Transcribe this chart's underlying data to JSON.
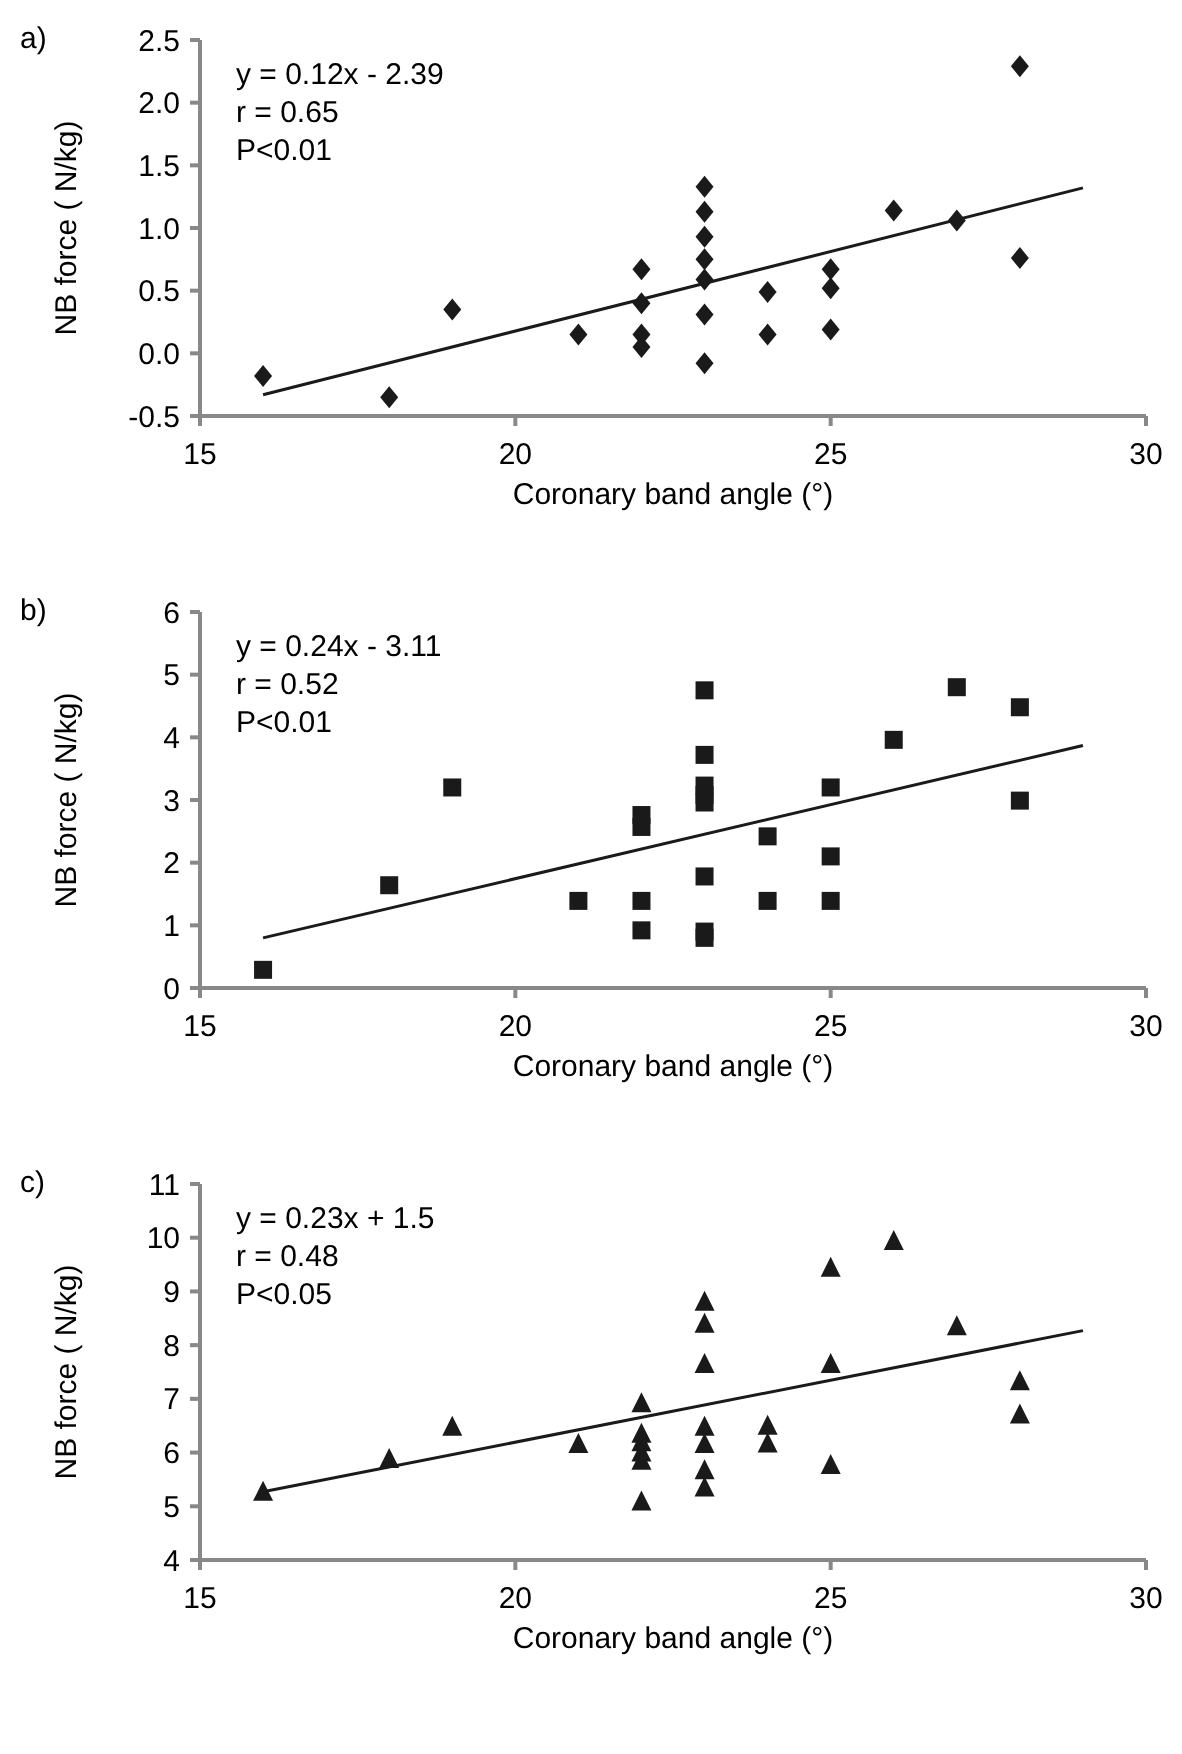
{
  "chart_data": [
    {
      "type": "scatter",
      "title": "a)",
      "xlabel": "Coronary band angle (°)",
      "ylabel": "NB force ( N/kg)",
      "marker": "diamond",
      "grid": false,
      "xlim": [
        15,
        30
      ],
      "xticks": [
        15,
        20,
        25,
        30
      ],
      "ylim": [
        -0.5,
        2.5
      ],
      "yticks": [
        {
          "value": -0.5,
          "label": "-0.5"
        },
        {
          "value": 0,
          "label": "0.0"
        },
        {
          "value": 0.5,
          "label": "0.5"
        },
        {
          "value": 1,
          "label": "1.0"
        },
        {
          "value": 1.5,
          "label": "1.5"
        },
        {
          "value": 2,
          "label": "2.0"
        },
        {
          "value": 2.5,
          "label": "2.5"
        }
      ],
      "annotations": [
        "y = 0.12x - 2.39",
        "r = 0.65",
        "P<0.01"
      ],
      "series": [
        {
          "color": "#1a1a1a",
          "x": [
            16,
            18,
            19,
            21,
            22,
            22,
            22,
            22,
            23,
            23,
            23,
            23,
            23,
            23,
            23,
            24,
            24,
            25,
            25,
            25,
            26,
            27,
            28,
            28
          ],
          "values": [
            -0.18,
            -0.35,
            0.35,
            0.15,
            0.67,
            0.4,
            0.15,
            0.05,
            1.33,
            1.13,
            0.93,
            0.75,
            0.59,
            0.31,
            -0.08,
            0.49,
            0.15,
            0.67,
            0.52,
            0.19,
            1.14,
            1.06,
            2.29,
            0.76
          ]
        },
        {
          "type": "line",
          "color": "#1a1a1a",
          "marker": "none",
          "x": [
            16,
            29
          ],
          "values": [
            -0.33,
            1.32
          ]
        }
      ]
    },
    {
      "type": "scatter",
      "title": "b)",
      "xlabel": "Coronary band angle (°)",
      "ylabel": "NB force ( N/kg)",
      "marker": "square",
      "grid": false,
      "xlim": [
        15,
        30
      ],
      "xticks": [
        15,
        20,
        25,
        30
      ],
      "ylim": [
        0,
        6
      ],
      "yticks": [
        0,
        1,
        2,
        3,
        4,
        5,
        6
      ],
      "annotations": [
        "y = 0.24x - 3.11",
        "r = 0.52",
        "P<0.01"
      ],
      "series": [
        {
          "color": "#1a1a1a",
          "x": [
            16,
            18,
            19,
            21,
            22,
            22,
            22,
            22,
            23,
            23,
            23,
            23,
            23,
            23,
            23,
            23,
            24,
            24,
            25,
            25,
            25,
            26,
            27,
            28,
            28
          ],
          "values": [
            0.29,
            1.64,
            3.2,
            1.39,
            2.76,
            2.57,
            1.39,
            0.92,
            4.75,
            3.72,
            3.23,
            3.08,
            2.96,
            1.78,
            0.9,
            0.8,
            2.42,
            1.39,
            3.2,
            2.1,
            1.39,
            3.96,
            4.8,
            4.48,
            2.99
          ]
        },
        {
          "type": "line",
          "color": "#1a1a1a",
          "marker": "none",
          "x": [
            16,
            29
          ],
          "values": [
            0.8,
            3.87
          ]
        }
      ]
    },
    {
      "type": "scatter",
      "title": "c)",
      "xlabel": "Coronary band angle (°)",
      "ylabel": "NB force ( N/kg)",
      "marker": "triangle",
      "grid": false,
      "xlim": [
        15,
        30
      ],
      "xticks": [
        15,
        20,
        25,
        30
      ],
      "ylim": [
        4,
        11
      ],
      "yticks": [
        4,
        5,
        6,
        7,
        8,
        9,
        10,
        11
      ],
      "annotations": [
        "y = 0.23x + 1.5",
        "r = 0.48",
        "P<0.05"
      ],
      "series": [
        {
          "color": "#1a1a1a",
          "x": [
            16,
            18,
            19,
            21,
            22,
            22,
            22,
            22,
            22,
            22,
            23,
            23,
            23,
            23,
            23,
            23,
            23,
            24,
            24,
            25,
            25,
            25,
            26,
            27,
            28,
            28
          ],
          "values": [
            5.27,
            5.88,
            6.48,
            6.16,
            6.92,
            6.35,
            6.19,
            6.0,
            5.85,
            5.09,
            8.81,
            8.4,
            7.65,
            6.48,
            6.16,
            5.67,
            5.35,
            6.5,
            6.17,
            9.44,
            7.65,
            5.77,
            9.94,
            8.35,
            7.33,
            6.71
          ]
        },
        {
          "type": "line",
          "color": "#1a1a1a",
          "marker": "none",
          "x": [
            16,
            29
          ],
          "values": [
            5.27,
            8.27
          ]
        }
      ]
    }
  ]
}
